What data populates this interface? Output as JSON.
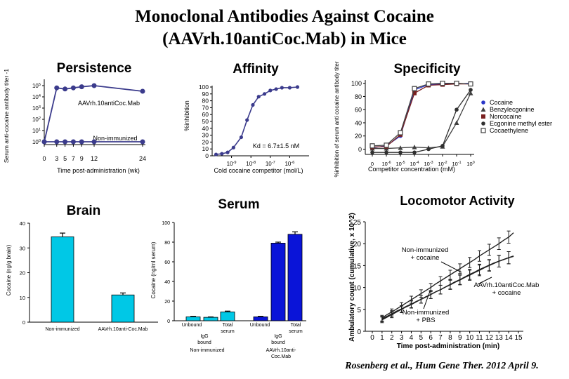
{
  "slide": {
    "title_line1": "Monoclonal Antibodies Against Cocaine",
    "title_line2": "(AAVrh.10antiCoc.Mab) in Mice",
    "citation": "Rosenberg et al., Hum Gene Ther. 2012 April 9."
  },
  "chart_data": [
    {
      "id": "persistence",
      "type": "line",
      "title": "Persistence",
      "xlabel": "Time post-administration (wk)",
      "ylabel": "Serum anti-cocaine antibody titer -1",
      "x_ticks": [
        "0",
        "3",
        "5",
        "7",
        "9",
        "12",
        "24"
      ],
      "y_ticks": [
        "10^0",
        "10^1",
        "10^2",
        "10^3",
        "10^4",
        "10^5"
      ],
      "y_scale": "log",
      "xlim": [
        0,
        26
      ],
      "ylim_log10": [
        -0.3,
        5.7
      ],
      "series": [
        {
          "name": "AAVrh.10antiCoc.Mab",
          "color": "#3b3b8c",
          "x": [
            0,
            3,
            5,
            7,
            9,
            12,
            24
          ],
          "y_log10": [
            0,
            4.8,
            4.7,
            4.8,
            4.9,
            5.0,
            4.5
          ]
        },
        {
          "name": "Non-immunized",
          "color": "#3b3b8c",
          "x": [
            0,
            3,
            5,
            7,
            9,
            12,
            24
          ],
          "y_log10": [
            0,
            0,
            0,
            0,
            0,
            0,
            0
          ]
        }
      ]
    },
    {
      "id": "affinity",
      "type": "line",
      "title": "Affinity",
      "xlabel": "Cold cocaine competitor (mol/L)",
      "ylabel": "%inhibition",
      "x_ticks": [
        "10^-9",
        "10^-8",
        "10^-7",
        "10^-6"
      ],
      "y_ticks": [
        "0",
        "10",
        "20",
        "30",
        "40",
        "50",
        "60",
        "70",
        "80",
        "90",
        "100"
      ],
      "annotation": "Kd = 6.7±1.5 nM",
      "x_scale": "log",
      "xlim_log10": [
        -10,
        -5
      ],
      "ylim": [
        0,
        100
      ],
      "series": [
        {
          "name": "Affinity",
          "color": "#3b3b8c",
          "x_log10": [
            -9.8,
            -9.5,
            -9.2,
            -8.9,
            -8.5,
            -8.2,
            -7.9,
            -7.6,
            -7.3,
            -7.0,
            -6.7,
            -6.4,
            -6.0,
            -5.6
          ],
          "y": [
            2,
            3,
            5,
            12,
            27,
            52,
            74,
            86,
            90,
            95,
            97,
            99,
            99,
            100
          ]
        }
      ]
    },
    {
      "id": "specificity",
      "type": "line",
      "title": "Specificity",
      "xlabel": "Competitor concentration (mM)",
      "ylabel": "%inhibition of serum anti cocaine antibody titer",
      "x_ticks": [
        "0",
        "10^-6",
        "10^-5",
        "10^-4",
        "10^-3",
        "10^-2",
        "10^-1",
        "10^0"
      ],
      "y_ticks": [
        "0",
        "20",
        "40",
        "60",
        "80",
        "100"
      ],
      "ylim": [
        -8,
        105
      ],
      "legend": [
        "Cocaine",
        "Benzylecgonine",
        "Norcocaine",
        "Ecgonine methyl ester",
        "Cocaethylene"
      ],
      "series": [
        {
          "name": "Cocaine",
          "color": "#2a36c8",
          "marker": "circle",
          "x_index": [
            0,
            1,
            2,
            3,
            4,
            5,
            6,
            7
          ],
          "y": [
            2,
            5,
            20,
            90,
            98,
            99,
            99,
            100
          ]
        },
        {
          "name": "Benzylecgonine",
          "color": "#404040",
          "marker": "triangle",
          "x_index": [
            0,
            1,
            2,
            3,
            4,
            5,
            6,
            7
          ],
          "y": [
            1,
            1,
            2,
            3,
            2,
            4,
            40,
            85
          ]
        },
        {
          "name": "Norcocaine",
          "color": "#7a2020",
          "marker": "square",
          "x_index": [
            0,
            1,
            2,
            3,
            4,
            5,
            6,
            7
          ],
          "y": [
            3,
            4,
            22,
            85,
            97,
            98,
            99,
            99
          ]
        },
        {
          "name": "Ecgonine methyl ester",
          "color": "#303030",
          "marker": "circle",
          "x_index": [
            0,
            1,
            2,
            3,
            4,
            5,
            6,
            7
          ],
          "y": [
            -5,
            -5,
            -5,
            -5,
            0,
            5,
            60,
            90
          ]
        },
        {
          "name": "Cocaethylene",
          "color": "#404040",
          "marker": "square-open",
          "x_index": [
            0,
            1,
            2,
            3,
            4,
            5,
            6,
            7
          ],
          "y": [
            5,
            6,
            25,
            92,
            99,
            100,
            100,
            99
          ]
        }
      ]
    },
    {
      "id": "brain",
      "type": "bar",
      "title": "Brain",
      "ylabel": "Cocaine (ng/g brain)",
      "categories": [
        "Non-immunized",
        "AAVrh.10anti-Coc.Mab"
      ],
      "values": [
        34.5,
        11
      ],
      "errors": [
        1.5,
        0.8
      ],
      "y_ticks": [
        "0",
        "10",
        "20",
        "30",
        "40"
      ],
      "ylim": [
        0,
        40
      ],
      "color": "#00c8e6"
    },
    {
      "id": "serum",
      "type": "bar",
      "title": "Serum",
      "ylabel": "Cocaine (ng/ml serum)",
      "y_ticks": [
        "0",
        "20",
        "40",
        "60",
        "80",
        "100"
      ],
      "ylim": [
        0,
        100
      ],
      "labels": [
        "Unbound",
        "IgG bound",
        "Total serum",
        "Unbound",
        "IgG bound",
        "Total serum"
      ],
      "group_labels": [
        "Non-immunized",
        "AAVrh.10anti-Coc.Mab"
      ],
      "values": [
        4,
        3.5,
        9,
        4,
        79,
        88
      ],
      "errors": [
        0.5,
        0.4,
        0.8,
        0.5,
        1,
        2.5
      ],
      "colors": [
        "#00c8e6",
        "#00c8e6",
        "#00c8e6",
        "#0a14d8",
        "#0a14d8",
        "#0a14d8"
      ]
    },
    {
      "id": "locomotor",
      "type": "line",
      "title": "Locomotor Activity",
      "xlabel": "Time post-administration (min)",
      "ylabel": "Ambulatory count (cumulative, x 10^2)",
      "x_ticks": [
        "0",
        "1",
        "2",
        "3",
        "4",
        "5",
        "6",
        "7",
        "8",
        "9",
        "10",
        "11",
        "12",
        "13",
        "14",
        "15"
      ],
      "y_ticks": [
        "0",
        "5",
        "10",
        "15",
        "20",
        "25"
      ],
      "xlim": [
        0,
        15
      ],
      "ylim": [
        0,
        25
      ],
      "annotations": [
        "Non-immunized + cocaine",
        "AAVrh.10antiCoc.Mab + cocaine",
        "Non-immunized + PBS"
      ],
      "series": [
        {
          "name": "Non-immunized + cocaine",
          "color": "#202020",
          "x": [
            1,
            1.5,
            2,
            2.5,
            3,
            3.5,
            4,
            4.5,
            5,
            5.5,
            6,
            6.5,
            7,
            7.5,
            8,
            8.5,
            9,
            9.5,
            10,
            10.5,
            11,
            11.5,
            12,
            12.5,
            13,
            13.5,
            14,
            14.5
          ],
          "y": [
            3,
            3.8,
            4.4,
            5.1,
            5.8,
            6.5,
            7.2,
            7.9,
            8.6,
            9.3,
            10,
            10.8,
            11.5,
            12.2,
            12.9,
            13.6,
            14.3,
            15,
            15.7,
            16.4,
            17.2,
            17.9,
            18.6,
            19.3,
            20,
            20.8,
            21.5,
            22.5
          ]
        },
        {
          "name": "AAVrh.10antiCoc.Mab + cocaine",
          "color": "#202020",
          "x": [
            1,
            1.5,
            2,
            2.5,
            3,
            3.5,
            4,
            4.5,
            5,
            5.5,
            6,
            6.5,
            7,
            7.5,
            8,
            8.5,
            9,
            9.5,
            10,
            10.5,
            11,
            11.5,
            12,
            12.5,
            13,
            13.5,
            14,
            14.5
          ],
          "y": [
            2.8,
            3.4,
            4,
            4.6,
            5.1,
            5.7,
            6.2,
            6.8,
            7.3,
            7.9,
            8.4,
            9,
            9.5,
            10.1,
            10.6,
            11.2,
            11.7,
            12.3,
            12.8,
            13.4,
            13.9,
            14.5,
            15,
            15.5,
            16,
            16.4,
            16.8,
            17.2
          ]
        },
        {
          "name": "Non-immunized + PBS",
          "color": "#202020",
          "x": [
            1,
            1.5,
            2,
            2.5,
            3,
            3.5,
            4,
            4.5,
            5,
            5.5,
            6,
            6.5,
            7,
            7.5,
            8,
            8.5,
            9,
            9.5,
            10,
            10.5,
            11,
            11.5,
            12,
            12.5,
            13,
            13.5,
            14,
            14.5
          ],
          "y": [
            2.6,
            3.2,
            3.8,
            4.4,
            5,
            5.6,
            6.1,
            6.7,
            7.3,
            7.8,
            8.4,
            9,
            9.5,
            10.1,
            10.7,
            11.3,
            11.8,
            12.4,
            13,
            13.5,
            14.1,
            14.6,
            15.1,
            15.6,
            16,
            16.4,
            16.8,
            17.1
          ]
        }
      ]
    }
  ]
}
